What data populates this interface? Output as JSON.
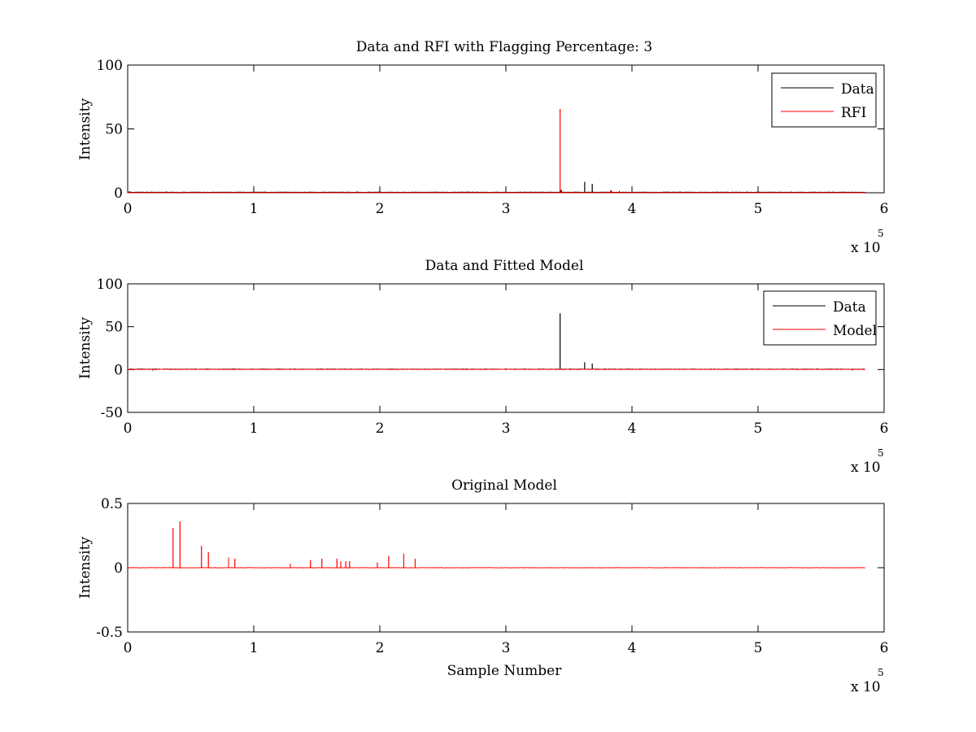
{
  "figure": {
    "background": "#ffffff",
    "colors": {
      "data": "#000000",
      "rfi": "#ff0000",
      "model": "#ff0000",
      "axes": "#000000"
    }
  },
  "chart_data": [
    {
      "type": "line",
      "title": "Data and RFI with Flagging Percentage: 3",
      "xlabel": "",
      "ylabel": "Intensity",
      "xlim": [
        0,
        600000
      ],
      "ylim": [
        0,
        100
      ],
      "xticks": [
        0,
        100000,
        200000,
        300000,
        400000,
        500000,
        600000
      ],
      "xtick_labels": [
        "0",
        "1",
        "2",
        "3",
        "4",
        "5",
        "6"
      ],
      "yticks": [
        0,
        50,
        100
      ],
      "ytick_labels": [
        "0",
        "50",
        "100"
      ],
      "x_multiplier": {
        "base": "x 10",
        "power": "5"
      },
      "legend": {
        "location": "top-right",
        "entries": [
          "Data",
          "RFI"
        ]
      },
      "grid": false,
      "x_range": [
        0,
        585000
      ],
      "series": [
        {
          "name": "Data",
          "color": "#000000",
          "baseline": 0.4,
          "spikes": [
            {
              "x": 1500,
              "y": 1.2
            },
            {
              "x": 343500,
              "y": 2.0
            },
            {
              "x": 362500,
              "y": 8.5
            },
            {
              "x": 368500,
              "y": 7.0
            },
            {
              "x": 383500,
              "y": 1.8
            },
            {
              "x": 390000,
              "y": 1.2
            }
          ]
        },
        {
          "name": "RFI",
          "color": "#ff0000",
          "baseline": 0.1,
          "spikes": [
            {
              "x": 343000,
              "y": 65.5
            },
            {
              "x": 344200,
              "y": 2.5
            },
            {
              "x": 383000,
              "y": 1.5
            }
          ]
        }
      ]
    },
    {
      "type": "line",
      "title": "Data and Fitted Model",
      "xlabel": "",
      "ylabel": "Intensity",
      "xlim": [
        0,
        600000
      ],
      "ylim": [
        -50,
        100
      ],
      "xticks": [
        0,
        100000,
        200000,
        300000,
        400000,
        500000,
        600000
      ],
      "xtick_labels": [
        "0",
        "1",
        "2",
        "3",
        "4",
        "5",
        "6"
      ],
      "yticks": [
        -50,
        0,
        50,
        100
      ],
      "ytick_labels": [
        "-50",
        "0",
        "50",
        "100"
      ],
      "x_multiplier": {
        "base": "x 10",
        "power": "5"
      },
      "legend": {
        "location": "top-right",
        "entries": [
          "Data",
          "Model"
        ]
      },
      "grid": false,
      "x_range": [
        0,
        585000
      ],
      "series": [
        {
          "name": "Data",
          "color": "#000000",
          "baseline": 0.4,
          "spikes": [
            {
              "x": 343000,
              "y": 65.5
            },
            {
              "x": 362500,
              "y": 8.5
            },
            {
              "x": 368500,
              "y": 7.0
            }
          ],
          "dips": [
            {
              "x": 5000,
              "y": -0.8
            },
            {
              "x": 20000,
              "y": -1.2
            },
            {
              "x": 575000,
              "y": -0.9
            }
          ]
        },
        {
          "name": "Model",
          "color": "#ff0000",
          "baseline": 0.2,
          "spikes": []
        }
      ]
    },
    {
      "type": "line",
      "title": "Original Model",
      "xlabel": "Sample Number",
      "ylabel": "Intensity",
      "xlim": [
        0,
        600000
      ],
      "ylim": [
        -0.5,
        0.5
      ],
      "xticks": [
        0,
        100000,
        200000,
        300000,
        400000,
        500000,
        600000
      ],
      "xtick_labels": [
        "0",
        "1",
        "2",
        "3",
        "4",
        "5",
        "6"
      ],
      "yticks": [
        -0.5,
        0,
        0.5
      ],
      "ytick_labels": [
        "-0.5",
        "0",
        "0.5"
      ],
      "x_multiplier": {
        "base": "x 10",
        "power": "5"
      },
      "legend": null,
      "grid": false,
      "x_range": [
        0,
        585000
      ],
      "series": [
        {
          "name": "",
          "color": "#ff0000",
          "baseline": 0.0,
          "spikes": [
            {
              "x": 36000,
              "y": 0.31
            },
            {
              "x": 41500,
              "y": 0.36
            },
            {
              "x": 58500,
              "y": 0.17
            },
            {
              "x": 64000,
              "y": 0.12
            },
            {
              "x": 80000,
              "y": 0.08
            },
            {
              "x": 85000,
              "y": 0.07
            },
            {
              "x": 129000,
              "y": 0.03
            },
            {
              "x": 145000,
              "y": 0.06
            },
            {
              "x": 154000,
              "y": 0.07
            },
            {
              "x": 166000,
              "y": 0.07
            },
            {
              "x": 169000,
              "y": 0.05
            },
            {
              "x": 173000,
              "y": 0.05
            },
            {
              "x": 176000,
              "y": 0.05
            },
            {
              "x": 198000,
              "y": 0.04
            },
            {
              "x": 207000,
              "y": 0.09
            },
            {
              "x": 219000,
              "y": 0.11
            },
            {
              "x": 228000,
              "y": 0.07
            }
          ]
        }
      ]
    }
  ]
}
